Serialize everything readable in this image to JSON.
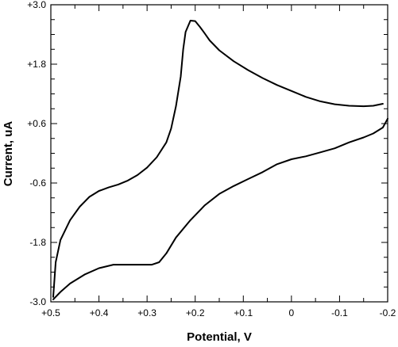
{
  "chart_data": {
    "type": "line",
    "title": "",
    "xlabel": "Potential, V",
    "ylabel": "Current, uA",
    "x_reversed": true,
    "xlim": [
      0.5,
      -0.2
    ],
    "ylim": [
      -3.0,
      3.0
    ],
    "x_ticks": [
      {
        "value": 0.5,
        "label": "+0.5"
      },
      {
        "value": 0.4,
        "label": "+0.4"
      },
      {
        "value": 0.3,
        "label": "+0.3"
      },
      {
        "value": 0.2,
        "label": "+0.2"
      },
      {
        "value": 0.1,
        "label": "+0.1"
      },
      {
        "value": 0.0,
        "label": "0"
      },
      {
        "value": -0.1,
        "label": "-0.1"
      },
      {
        "value": -0.2,
        "label": "-0.2"
      }
    ],
    "y_ticks": [
      {
        "value": 3.0,
        "label": "+3.0"
      },
      {
        "value": 1.8,
        "label": "+1.8"
      },
      {
        "value": 0.6,
        "label": "+0.6"
      },
      {
        "value": -0.6,
        "label": "-0.6"
      },
      {
        "value": -1.8,
        "label": "-1.8"
      },
      {
        "value": -3.0,
        "label": "-3.0"
      }
    ],
    "grid": false,
    "legend": "none",
    "line_color": "#000000",
    "series": [
      {
        "points": [
          [
            0.495,
            -2.9
          ],
          [
            0.49,
            -2.2
          ],
          [
            0.48,
            -1.75
          ],
          [
            0.46,
            -1.35
          ],
          [
            0.44,
            -1.08
          ],
          [
            0.42,
            -0.88
          ],
          [
            0.4,
            -0.76
          ],
          [
            0.38,
            -0.69
          ],
          [
            0.36,
            -0.63
          ],
          [
            0.34,
            -0.55
          ],
          [
            0.32,
            -0.44
          ],
          [
            0.3,
            -0.29
          ],
          [
            0.28,
            -0.08
          ],
          [
            0.26,
            0.22
          ],
          [
            0.25,
            0.5
          ],
          [
            0.24,
            0.95
          ],
          [
            0.23,
            1.55
          ],
          [
            0.225,
            2.1
          ],
          [
            0.22,
            2.45
          ],
          [
            0.21,
            2.68
          ],
          [
            0.2,
            2.67
          ],
          [
            0.19,
            2.55
          ],
          [
            0.18,
            2.42
          ],
          [
            0.17,
            2.28
          ],
          [
            0.15,
            2.08
          ],
          [
            0.12,
            1.86
          ],
          [
            0.09,
            1.68
          ],
          [
            0.06,
            1.52
          ],
          [
            0.03,
            1.38
          ],
          [
            0.0,
            1.26
          ],
          [
            -0.03,
            1.14
          ],
          [
            -0.06,
            1.05
          ],
          [
            -0.09,
            0.99
          ],
          [
            -0.12,
            0.96
          ],
          [
            -0.15,
            0.95
          ],
          [
            -0.17,
            0.96
          ],
          [
            -0.19,
            1.0
          ]
        ]
      },
      {
        "points": [
          [
            -0.2,
            0.7
          ],
          [
            -0.19,
            0.52
          ],
          [
            -0.17,
            0.4
          ],
          [
            -0.15,
            0.32
          ],
          [
            -0.12,
            0.22
          ],
          [
            -0.09,
            0.1
          ],
          [
            -0.06,
            0.02
          ],
          [
            -0.03,
            -0.06
          ],
          [
            0.0,
            -0.12
          ],
          [
            0.03,
            -0.22
          ],
          [
            0.06,
            -0.38
          ],
          [
            0.09,
            -0.52
          ],
          [
            0.12,
            -0.66
          ],
          [
            0.15,
            -0.82
          ],
          [
            0.18,
            -1.05
          ],
          [
            0.21,
            -1.35
          ],
          [
            0.24,
            -1.7
          ],
          [
            0.26,
            -2.02
          ],
          [
            0.275,
            -2.2
          ],
          [
            0.29,
            -2.25
          ],
          [
            0.32,
            -2.25
          ],
          [
            0.35,
            -2.25
          ],
          [
            0.37,
            -2.25
          ],
          [
            0.4,
            -2.32
          ],
          [
            0.43,
            -2.45
          ],
          [
            0.46,
            -2.63
          ],
          [
            0.48,
            -2.8
          ],
          [
            0.495,
            -2.95
          ]
        ]
      }
    ]
  }
}
